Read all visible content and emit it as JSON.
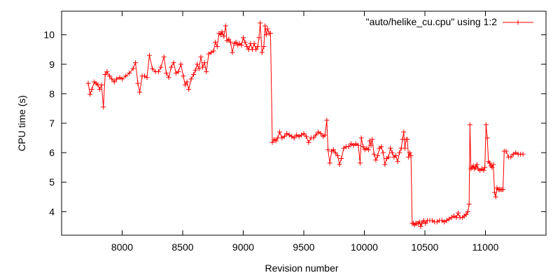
{
  "chart_data": {
    "type": "line",
    "title": "",
    "xlabel": "Revision number",
    "ylabel": "CPU time (s)",
    "xlim": [
      7500,
      11500
    ],
    "ylim": [
      3.2,
      10.8
    ],
    "xticks": [
      8000,
      8500,
      9000,
      9500,
      10000,
      10500,
      11000
    ],
    "yticks": [
      4,
      5,
      6,
      7,
      8,
      9,
      10
    ],
    "grid": false,
    "legend_position": "top-right",
    "marker": "plus",
    "series": [
      {
        "name": "\"auto/helike_cu.cpu\" using 1:2",
        "color": "#ff0000",
        "points": [
          [
            7720,
            8.35
          ],
          [
            7735,
            7.98
          ],
          [
            7750,
            8.15
          ],
          [
            7770,
            8.4
          ],
          [
            7785,
            8.35
          ],
          [
            7800,
            8.3
          ],
          [
            7815,
            8.15
          ],
          [
            7830,
            8.3
          ],
          [
            7845,
            7.55
          ],
          [
            7860,
            8.65
          ],
          [
            7875,
            8.75
          ],
          [
            7895,
            8.6
          ],
          [
            7915,
            8.5
          ],
          [
            7935,
            8.4
          ],
          [
            7955,
            8.5
          ],
          [
            7980,
            8.55
          ],
          [
            8000,
            8.5
          ],
          [
            8030,
            8.6
          ],
          [
            8060,
            8.7
          ],
          [
            8090,
            8.85
          ],
          [
            8110,
            9.05
          ],
          [
            8130,
            8.35
          ],
          [
            8145,
            8.05
          ],
          [
            8165,
            8.6
          ],
          [
            8185,
            8.6
          ],
          [
            8205,
            8.55
          ],
          [
            8225,
            9.3
          ],
          [
            8250,
            8.85
          ],
          [
            8275,
            8.75
          ],
          [
            8300,
            8.75
          ],
          [
            8320,
            8.9
          ],
          [
            8345,
            9.25
          ],
          [
            8365,
            8.7
          ],
          [
            8385,
            8.55
          ],
          [
            8405,
            8.9
          ],
          [
            8425,
            9.05
          ],
          [
            8445,
            8.7
          ],
          [
            8465,
            8.75
          ],
          [
            8485,
            9.0
          ],
          [
            8505,
            8.6
          ],
          [
            8520,
            8.3
          ],
          [
            8535,
            8.4
          ],
          [
            8550,
            8.15
          ],
          [
            8570,
            8.5
          ],
          [
            8590,
            8.65
          ],
          [
            8605,
            8.8
          ],
          [
            8620,
            9.0
          ],
          [
            8635,
            8.85
          ],
          [
            8650,
            9.25
          ],
          [
            8665,
            8.9
          ],
          [
            8680,
            9.05
          ],
          [
            8695,
            8.75
          ],
          [
            8715,
            9.35
          ],
          [
            8735,
            9.4
          ],
          [
            8755,
            9.45
          ],
          [
            8770,
            9.75
          ],
          [
            8785,
            9.6
          ],
          [
            8800,
            10.05
          ],
          [
            8815,
            10.0
          ],
          [
            8825,
            10.1
          ],
          [
            8840,
            9.95
          ],
          [
            8855,
            10.3
          ],
          [
            8865,
            9.8
          ],
          [
            8880,
            9.85
          ],
          [
            8895,
            9.75
          ],
          [
            8910,
            9.4
          ],
          [
            8925,
            9.7
          ],
          [
            8940,
            9.75
          ],
          [
            8955,
            9.65
          ],
          [
            8970,
            9.7
          ],
          [
            8985,
            9.65
          ],
          [
            9000,
            9.9
          ],
          [
            9015,
            9.75
          ],
          [
            9030,
            9.6
          ],
          [
            9045,
            9.5
          ],
          [
            9060,
            9.7
          ],
          [
            9075,
            9.5
          ],
          [
            9090,
            9.7
          ],
          [
            9105,
            9.5
          ],
          [
            9120,
            9.6
          ],
          [
            9130,
            9.9
          ],
          [
            9140,
            10.4
          ],
          [
            9155,
            9.4
          ],
          [
            9170,
            9.6
          ],
          [
            9180,
            10.3
          ],
          [
            9190,
            10.0
          ],
          [
            9200,
            10.2
          ],
          [
            9215,
            10.05
          ],
          [
            9225,
            10.05
          ],
          [
            9240,
            6.35
          ],
          [
            9255,
            6.45
          ],
          [
            9270,
            6.4
          ],
          [
            9285,
            6.5
          ],
          [
            9300,
            6.7
          ],
          [
            9320,
            6.5
          ],
          [
            9340,
            6.55
          ],
          [
            9360,
            6.65
          ],
          [
            9380,
            6.6
          ],
          [
            9400,
            6.55
          ],
          [
            9420,
            6.5
          ],
          [
            9440,
            6.6
          ],
          [
            9460,
            6.55
          ],
          [
            9480,
            6.6
          ],
          [
            9500,
            6.65
          ],
          [
            9520,
            6.55
          ],
          [
            9540,
            6.35
          ],
          [
            9560,
            6.5
          ],
          [
            9580,
            6.5
          ],
          [
            9600,
            6.6
          ],
          [
            9620,
            6.7
          ],
          [
            9640,
            6.65
          ],
          [
            9660,
            6.55
          ],
          [
            9675,
            6.6
          ],
          [
            9690,
            7.1
          ],
          [
            9700,
            6.1
          ],
          [
            9715,
            5.65
          ],
          [
            9730,
            6.05
          ],
          [
            9745,
            6.1
          ],
          [
            9760,
            6.0
          ],
          [
            9780,
            5.9
          ],
          [
            9795,
            5.6
          ],
          [
            9810,
            5.8
          ],
          [
            9830,
            6.15
          ],
          [
            9850,
            6.2
          ],
          [
            9870,
            6.2
          ],
          [
            9890,
            6.3
          ],
          [
            9910,
            6.25
          ],
          [
            9930,
            6.3
          ],
          [
            9950,
            6.25
          ],
          [
            9965,
            5.65
          ],
          [
            9975,
            6.5
          ],
          [
            9990,
            6.2
          ],
          [
            10005,
            6.1
          ],
          [
            10020,
            6.15
          ],
          [
            10035,
            6.1
          ],
          [
            10045,
            6.4
          ],
          [
            10055,
            6.25
          ],
          [
            10065,
            6.45
          ],
          [
            10080,
            5.95
          ],
          [
            10095,
            5.75
          ],
          [
            10110,
            5.9
          ],
          [
            10125,
            6.15
          ],
          [
            10140,
            6.2
          ],
          [
            10155,
            6.0
          ],
          [
            10170,
            5.6
          ],
          [
            10185,
            5.8
          ],
          [
            10200,
            5.85
          ],
          [
            10215,
            6.15
          ],
          [
            10230,
            6.0
          ],
          [
            10245,
            5.85
          ],
          [
            10260,
            5.9
          ],
          [
            10275,
            5.7
          ],
          [
            10290,
            6.0
          ],
          [
            10305,
            6.15
          ],
          [
            10315,
            6.45
          ],
          [
            10325,
            6.7
          ],
          [
            10335,
            6.15
          ],
          [
            10345,
            6.45
          ],
          [
            10355,
            6.45
          ],
          [
            10365,
            5.85
          ],
          [
            10375,
            6.0
          ],
          [
            10385,
            5.9
          ],
          [
            10395,
            3.6
          ],
          [
            10405,
            3.6
          ],
          [
            10415,
            3.55
          ],
          [
            10425,
            3.6
          ],
          [
            10435,
            3.6
          ],
          [
            10445,
            3.6
          ],
          [
            10455,
            3.65
          ],
          [
            10465,
            3.5
          ],
          [
            10475,
            3.6
          ],
          [
            10490,
            3.7
          ],
          [
            10505,
            3.6
          ],
          [
            10520,
            3.7
          ],
          [
            10540,
            3.7
          ],
          [
            10560,
            3.7
          ],
          [
            10580,
            3.65
          ],
          [
            10600,
            3.65
          ],
          [
            10620,
            3.7
          ],
          [
            10640,
            3.7
          ],
          [
            10660,
            3.65
          ],
          [
            10680,
            3.7
          ],
          [
            10700,
            3.75
          ],
          [
            10720,
            3.8
          ],
          [
            10740,
            3.85
          ],
          [
            10760,
            3.8
          ],
          [
            10775,
            3.95
          ],
          [
            10790,
            3.8
          ],
          [
            10810,
            3.8
          ],
          [
            10825,
            3.85
          ],
          [
            10840,
            3.9
          ],
          [
            10855,
            4.0
          ],
          [
            10865,
            4.25
          ],
          [
            10872,
            6.95
          ],
          [
            10880,
            5.45
          ],
          [
            10890,
            5.5
          ],
          [
            10900,
            5.55
          ],
          [
            10910,
            5.45
          ],
          [
            10920,
            5.5
          ],
          [
            10930,
            5.6
          ],
          [
            10940,
            5.45
          ],
          [
            10955,
            5.4
          ],
          [
            10970,
            5.45
          ],
          [
            10985,
            5.4
          ],
          [
            10995,
            5.5
          ],
          [
            11005,
            6.95
          ],
          [
            11015,
            6.5
          ],
          [
            11025,
            5.7
          ],
          [
            11035,
            5.65
          ],
          [
            11045,
            5.55
          ],
          [
            11055,
            5.5
          ],
          [
            11065,
            5.6
          ],
          [
            11075,
            4.65
          ],
          [
            11085,
            4.5
          ],
          [
            11095,
            4.8
          ],
          [
            11105,
            4.75
          ],
          [
            11115,
            4.75
          ],
          [
            11125,
            4.75
          ],
          [
            11135,
            4.75
          ],
          [
            11145,
            4.75
          ],
          [
            11155,
            6.05
          ],
          [
            11170,
            6.05
          ],
          [
            11190,
            5.85
          ],
          [
            11210,
            5.85
          ],
          [
            11230,
            5.95
          ],
          [
            11250,
            6.0
          ],
          [
            11270,
            5.95
          ],
          [
            11290,
            5.95
          ],
          [
            11310,
            5.95
          ]
        ]
      }
    ]
  }
}
